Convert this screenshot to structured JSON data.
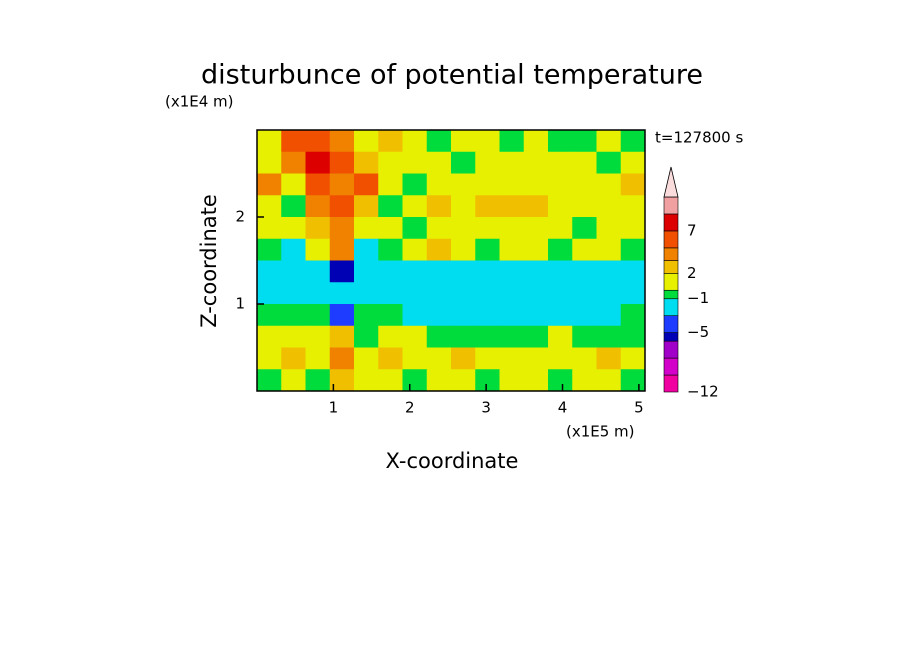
{
  "chart_data": {
    "type": "contour",
    "title": "disturbunce of potential temperature",
    "x_unit": "(x1E5 m)",
    "y_unit": "(x1E4 m)",
    "x_label": "X-coordinate",
    "y_label": "Z-coordinate",
    "annotation": "t=127800 s",
    "xlim": [
      0,
      5.08
    ],
    "ylim": [
      0,
      3
    ],
    "xticks": [
      1,
      2,
      3,
      4,
      5
    ],
    "yticks": [
      1,
      2
    ],
    "field": [
      [
        1,
        5,
        6,
        4,
        1,
        3,
        1,
        -0.5,
        1,
        1,
        -0.5,
        1,
        -0.5,
        -0.5,
        1,
        -0.5
      ],
      [
        1,
        4,
        7,
        5,
        3,
        1,
        1,
        1,
        -0.5,
        1,
        1,
        1,
        1,
        1,
        -0.5,
        1
      ],
      [
        4,
        1,
        6,
        4,
        6,
        1,
        -0.5,
        1,
        1,
        1,
        1,
        1,
        1,
        1,
        1,
        3
      ],
      [
        1,
        -0.5,
        4,
        5,
        3,
        -0.5,
        1,
        3,
        1,
        3,
        3,
        3,
        1,
        1,
        1,
        1
      ],
      [
        1,
        1,
        3,
        4,
        1,
        1,
        -0.5,
        1,
        1,
        1,
        1,
        1,
        1,
        -0.5,
        1,
        1
      ],
      [
        -0.5,
        -2,
        1,
        4,
        -2,
        -0.5,
        1,
        3,
        1,
        -0.5,
        1,
        1,
        -0.5,
        1,
        1,
        -0.5
      ],
      [
        -2,
        -2,
        -2,
        -5.5,
        -2,
        -2,
        -2,
        -2,
        -2,
        -2,
        -2,
        -2,
        -2,
        -2,
        -2,
        -2
      ],
      [
        -2,
        -2,
        -2,
        -2,
        -2,
        -2,
        -2,
        -2,
        -2,
        -2,
        -2,
        -2,
        -2,
        -2,
        -2,
        -2
      ],
      [
        -0.5,
        -0.5,
        -0.5,
        -4,
        -0.5,
        -0.5,
        -2,
        -2,
        -2,
        -2,
        -2,
        -2,
        -2,
        -2,
        -2,
        -0.5
      ],
      [
        1,
        1,
        1,
        3,
        -0.5,
        1,
        1,
        -0.5,
        -0.5,
        -0.5,
        -0.5,
        -0.5,
        1,
        -0.5,
        -0.5,
        -0.5
      ],
      [
        1,
        3,
        1,
        4,
        1,
        3,
        1,
        1,
        3,
        1,
        1,
        1,
        1,
        1,
        3,
        1
      ],
      [
        -0.5,
        1,
        -0.5,
        3,
        1,
        1,
        -0.5,
        1,
        1,
        -0.5,
        1,
        1,
        -0.5,
        1,
        1,
        -0.5
      ]
    ],
    "colorbar": {
      "levels": [
        -12,
        -10,
        -8,
        -6,
        -5,
        -3,
        -1,
        0,
        2,
        3.5,
        5,
        7,
        9,
        11
      ],
      "colors": [
        "#f000a0",
        "#d200c8",
        "#a000c8",
        "#0000b4",
        "#1e3cff",
        "#00dcf0",
        "#00dc3c",
        "#e6f000",
        "#f0c000",
        "#f08200",
        "#f05000",
        "#dc0000",
        "#f0a0a0",
        "#fadcdc"
      ],
      "ticks": [
        {
          "value": -12,
          "label": "−12"
        },
        {
          "value": -5,
          "label": "−5"
        },
        {
          "value": -1,
          "label": "−1"
        },
        2,
        7
      ]
    }
  }
}
